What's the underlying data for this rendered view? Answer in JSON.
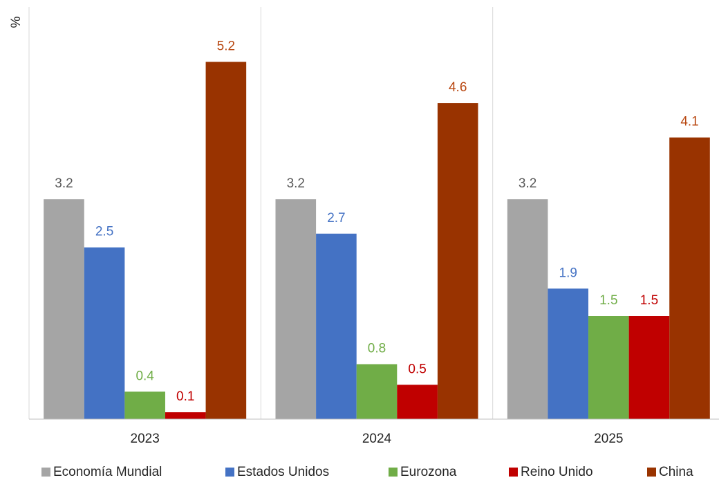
{
  "chart_data": {
    "type": "bar",
    "y_label": "%",
    "categories": [
      "2023",
      "2024",
      "2025"
    ],
    "series": [
      {
        "name": "Economía Mundial",
        "color": "#a5a5a5",
        "label_color": "#595959",
        "values": [
          3.2,
          3.2,
          3.2
        ]
      },
      {
        "name": "Estados Unidos",
        "color": "#4472c4",
        "label_color": "#4472c4",
        "values": [
          2.5,
          2.7,
          1.9
        ]
      },
      {
        "name": "Eurozona",
        "color": "#70ad47",
        "label_color": "#70ad47",
        "values": [
          0.4,
          0.8,
          1.5
        ]
      },
      {
        "name": "Reino Unido",
        "color": "#c00000",
        "label_color": "#c00000",
        "values": [
          0.1,
          0.5,
          1.5
        ]
      },
      {
        "name": "China",
        "color": "#993300",
        "label_color": "#b8460f",
        "values": [
          5.2,
          4.6,
          4.1
        ]
      }
    ],
    "ylim": [
      0,
      6
    ],
    "data_labels": true
  }
}
